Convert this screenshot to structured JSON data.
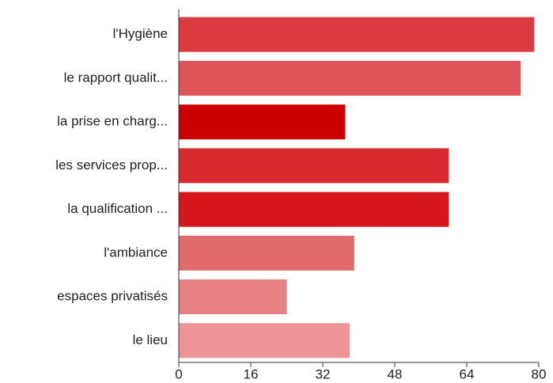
{
  "chart_data": {
    "type": "bar",
    "orientation": "horizontal",
    "categories": [
      "l'Hygiène",
      "le rapport qualit...",
      "la prise en charg...",
      "les services prop...",
      "la qualification ...",
      "l'ambiance",
      "espaces privatisés",
      "le lieu"
    ],
    "values": [
      79,
      76,
      37,
      60,
      60,
      39,
      24,
      38
    ],
    "colors": [
      "#da3a40",
      "#df5458",
      "#cc0000",
      "#d82a2e",
      "#d5171b",
      "#e06a6c",
      "#e88184",
      "#ec9496"
    ],
    "xlim": [
      0,
      80
    ],
    "xticks": [
      0,
      16,
      32,
      48,
      64,
      80
    ],
    "grid": false
  }
}
